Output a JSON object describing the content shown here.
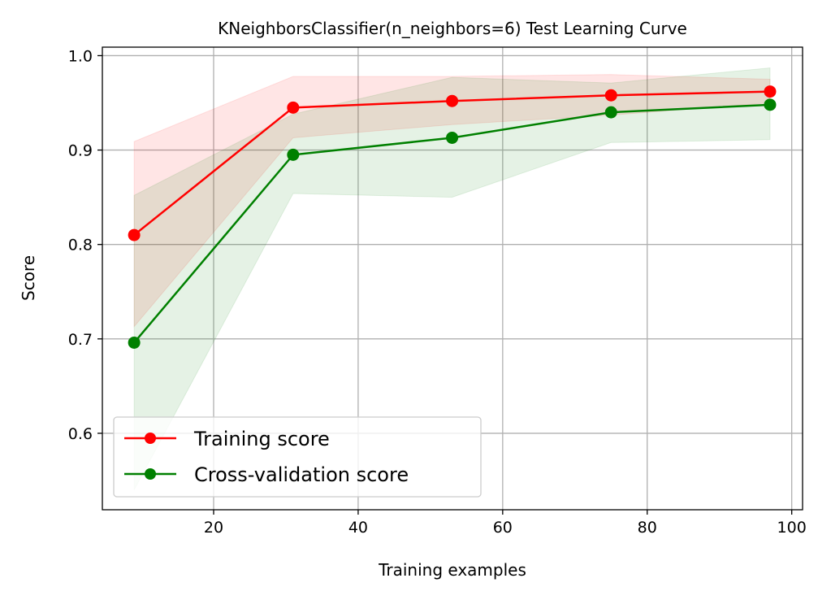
{
  "chart_data": {
    "type": "line",
    "title": "KNeighborsClassifier(n_neighbors=6) Test Learning Curve",
    "xlabel": "Training examples",
    "ylabel": "Score",
    "xlim": [
      4.6,
      101.5
    ],
    "ylim": [
      0.519,
      1.009
    ],
    "xticks": [
      20,
      40,
      60,
      80,
      100
    ],
    "xtick_labels": [
      "20",
      "40",
      "60",
      "80",
      "100"
    ],
    "yticks": [
      0.6,
      0.7,
      0.8,
      0.9,
      1.0
    ],
    "ytick_labels": [
      "0.6",
      "0.7",
      "0.8",
      "0.9",
      "1.0"
    ],
    "grid": true,
    "legend_position": "lower-left",
    "x": [
      9,
      31,
      53,
      75,
      97
    ],
    "series": [
      {
        "name": "Training score",
        "color": "#ff0000",
        "values": [
          0.81,
          0.945,
          0.952,
          0.958,
          0.962
        ],
        "band_upper": [
          0.909,
          0.978,
          0.978,
          0.98,
          0.975
        ],
        "band_lower": [
          0.713,
          0.913,
          0.927,
          0.937,
          0.95
        ]
      },
      {
        "name": "Cross-validation score",
        "color": "#008000",
        "values": [
          0.696,
          0.895,
          0.913,
          0.94,
          0.948
        ],
        "band_upper": [
          0.852,
          0.938,
          0.977,
          0.971,
          0.987
        ],
        "band_lower": [
          0.54,
          0.854,
          0.85,
          0.908,
          0.911
        ]
      }
    ]
  }
}
